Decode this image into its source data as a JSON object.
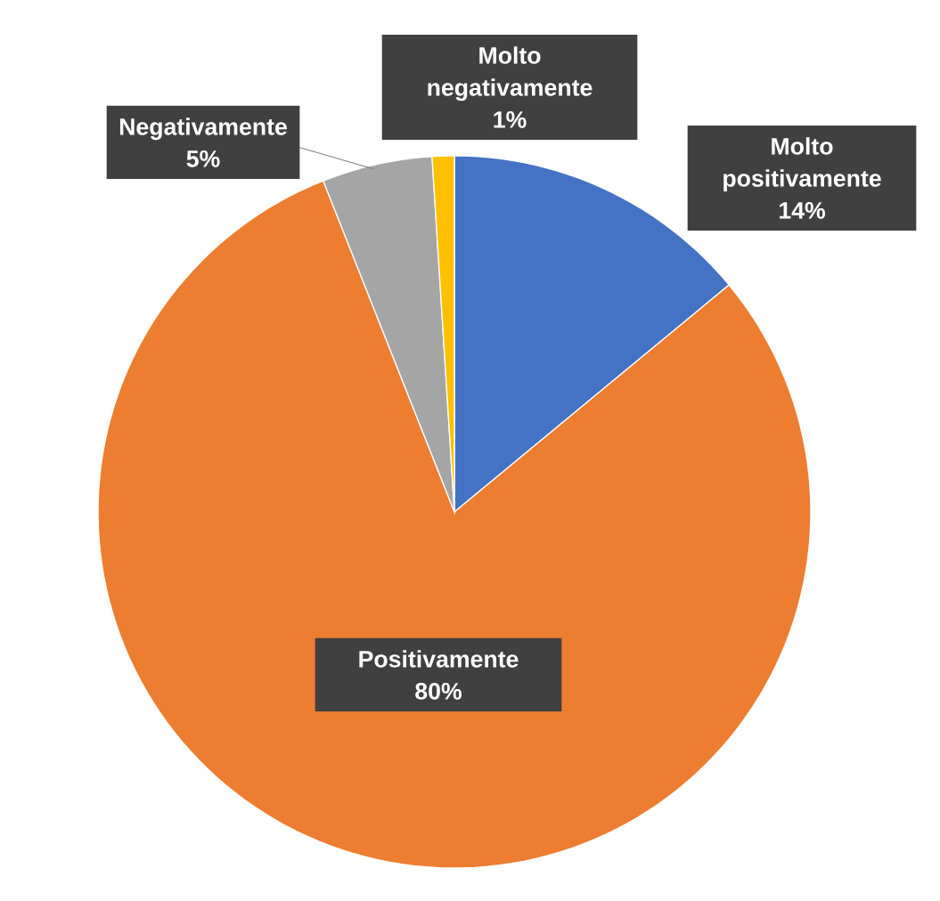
{
  "chart_data": {
    "type": "pie",
    "categories": [
      "Molto positivamente",
      "Positivamente",
      "Negativamente",
      "Molto negativamente"
    ],
    "values": [
      14,
      80,
      5,
      1
    ],
    "colors": [
      "#4472c4",
      "#ed7d31",
      "#a5a5a5",
      "#ffc000"
    ],
    "value_labels": [
      "14%",
      "80%",
      "5%",
      "1%"
    ]
  }
}
